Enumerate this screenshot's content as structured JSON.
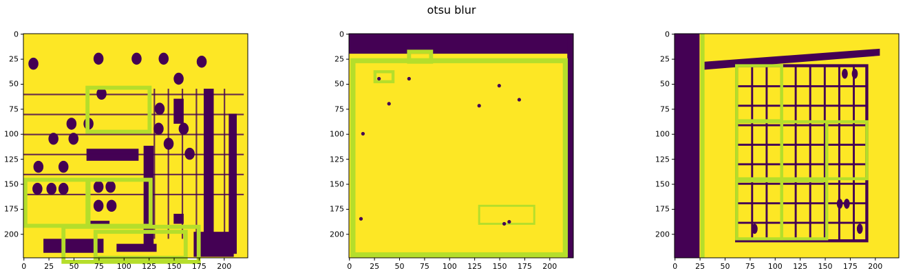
{
  "figure": {
    "title": "otsu blur"
  },
  "colors": {
    "background_low": "#440154",
    "background_high": "#fde725",
    "contour": "#b5de2b"
  },
  "axes": {
    "x_ticks": [
      "0",
      "25",
      "50",
      "75",
      "100",
      "125",
      "150",
      "175",
      "200"
    ],
    "y_ticks": [
      "0",
      "25",
      "50",
      "75",
      "100",
      "125",
      "150",
      "175",
      "200"
    ],
    "data_range": [
      0,
      224
    ]
  },
  "panels": [
    {
      "id": "left"
    },
    {
      "id": "middle"
    },
    {
      "id": "right"
    }
  ]
}
